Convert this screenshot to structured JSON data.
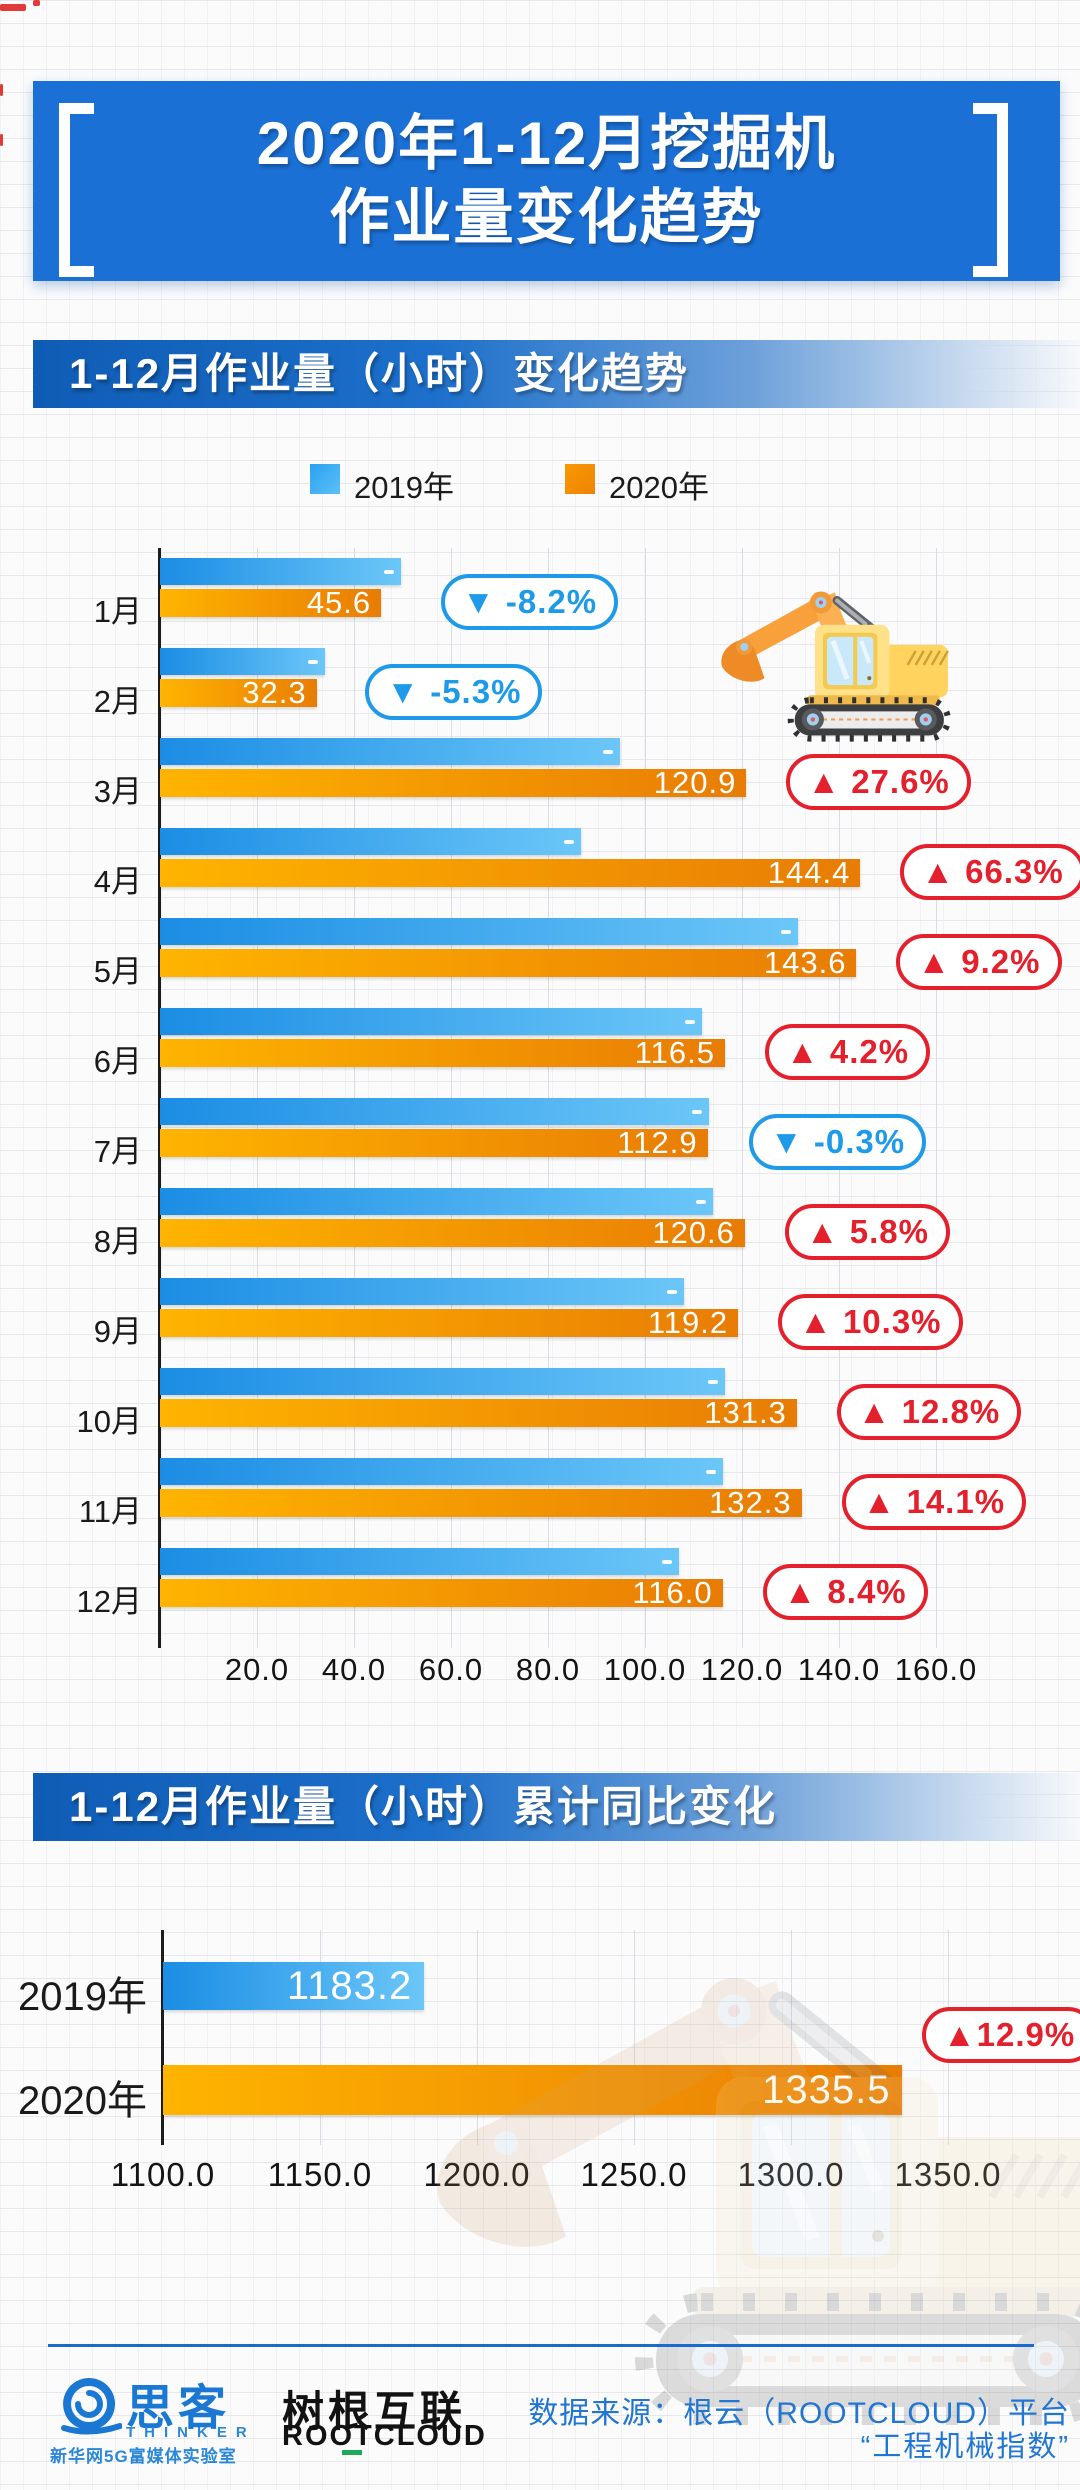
{
  "page_title": {
    "line1": "2020年1-12月挖掘机",
    "line2": "作业量变化趋势"
  },
  "section1": {
    "header": "1-12月作业量（小时）变化趋势",
    "legend": [
      {
        "label": "2019年"
      },
      {
        "label": "2020年"
      }
    ]
  },
  "section2": {
    "header": "1-12月作业量（小时）累计同比变化"
  },
  "chart_data": [
    {
      "type": "bar",
      "orientation": "horizontal",
      "title": "1-12月作业量（小时）变化趋势",
      "categories": [
        "1月",
        "2月",
        "3月",
        "4月",
        "5月",
        "6月",
        "7月",
        "8月",
        "9月",
        "10月",
        "11月",
        "12月"
      ],
      "series": [
        {
          "name": "2019年",
          "color": "#2f9df0",
          "values": [
            49.7,
            34.1,
            94.8,
            86.8,
            131.5,
            111.8,
            113.2,
            114.0,
            108.1,
            116.4,
            116.0,
            107.0
          ],
          "note": "bars unlabeled in image; values estimated from bar lengths and YoY percentages"
        },
        {
          "name": "2020年",
          "color": "#f79b04",
          "values": [
            45.6,
            32.3,
            120.9,
            144.4,
            143.6,
            116.5,
            112.9,
            120.6,
            119.2,
            131.3,
            132.3,
            116.0
          ],
          "value_labels": [
            "45.6",
            "32.3",
            "120.9",
            "144.4",
            "143.6",
            "116.5",
            "112.9",
            "120.6",
            "119.2",
            "131.3",
            "132.3",
            "116.0"
          ]
        }
      ],
      "yoy_badges": [
        {
          "dir": "down",
          "label": "▼ -8.2%"
        },
        {
          "dir": "down",
          "label": "▼ -5.3%"
        },
        {
          "dir": "up",
          "label": "▲ 27.6%"
        },
        {
          "dir": "up",
          "label": "▲ 66.3%"
        },
        {
          "dir": "up",
          "label": "▲ 9.2%"
        },
        {
          "dir": "up",
          "label": "▲ 4.2%"
        },
        {
          "dir": "down",
          "label": "▼ -0.3%"
        },
        {
          "dir": "up",
          "label": "▲ 5.8%"
        },
        {
          "dir": "up",
          "label": "▲ 10.3%"
        },
        {
          "dir": "up",
          "label": "▲ 12.8%"
        },
        {
          "dir": "up",
          "label": "▲ 14.1%"
        },
        {
          "dir": "up",
          "label": "▲ 8.4%"
        }
      ],
      "xlim": [
        0,
        165
      ],
      "x_ticks": [
        20,
        40,
        60,
        80,
        100,
        120,
        140,
        160
      ],
      "x_tick_labels": [
        "20.0",
        "40.0",
        "60.0",
        "80.0",
        "100.0",
        "120.0",
        "140.0",
        "160.0"
      ],
      "grid": true,
      "legend_position": "top"
    },
    {
      "type": "bar",
      "orientation": "horizontal",
      "title": "1-12月作业量（小时）累计同比变化",
      "categories": [
        "2019年",
        "2020年"
      ],
      "values": [
        1183.2,
        1335.5
      ],
      "value_labels": [
        "1183.2",
        "1335.5"
      ],
      "yoy_badge": {
        "dir": "up",
        "label": "▲12.9%"
      },
      "xlim": [
        1100,
        1360
      ],
      "x_ticks": [
        1100,
        1150,
        1200,
        1250,
        1300,
        1350
      ],
      "x_tick_labels": [
        "1100.0",
        "1150.0",
        "1200.0",
        "1250.0",
        "1300.0",
        "1350.0"
      ],
      "grid": true
    }
  ],
  "colors": {
    "title_bg": "#1b70d6",
    "bar_blue_start": "#1b8de4",
    "bar_blue_end": "#6cc7f8",
    "bar_orange_start": "#ffb400",
    "bar_orange_end": "#e87c04",
    "badge_red": "#e4202c",
    "badge_blue": "#1e9ae8",
    "footer_blue": "#2176d2",
    "rootcloud_green": "#1faa59"
  },
  "footer": {
    "thinker_logo": {
      "name": "思客",
      "latin": "THINKER",
      "caption": "新华网5G富媒体实验室"
    },
    "rootcloud_logo": {
      "name": "树根互联",
      "latin": "ROOTCLOUD"
    },
    "source_line1": "数据来源：根云（ROOTCLOUD）平台",
    "source_line2": "“工程机械指数”"
  }
}
